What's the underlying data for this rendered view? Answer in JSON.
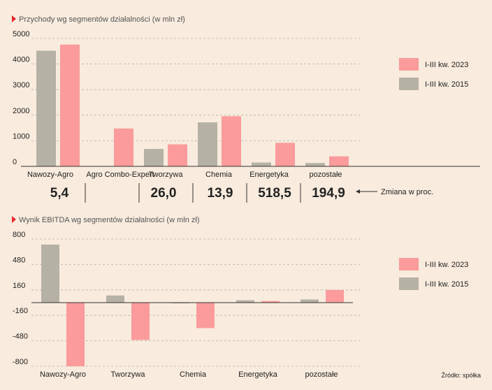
{
  "chart_data": [
    {
      "type": "bar",
      "title": "Przychody wg segmentów działalności (w mln zł)",
      "categories": [
        "Nawozy-Agro",
        "Agro Combo-Expert",
        "Tworzywa",
        "Chemia",
        "Energetyka",
        "pozostałe"
      ],
      "series": [
        {
          "name": "I-III kw. 2015",
          "color": "#b5b1a5",
          "values": [
            4520,
            null,
            680,
            1720,
            150,
            130
          ]
        },
        {
          "name": "I-III kw. 2023",
          "color": "#fb9b9b",
          "values": [
            4760,
            1480,
            860,
            1960,
            920,
            390
          ]
        }
      ],
      "yticks": [
        0,
        1000,
        2000,
        3000,
        4000,
        5000
      ],
      "ylim": [
        0,
        5000
      ],
      "grid": true,
      "legend": "right",
      "change_label": "Zmiana w proc.",
      "changes": [
        "5,4",
        "",
        "26,0",
        "13,9",
        "518,5",
        "194,9"
      ]
    },
    {
      "type": "bar",
      "title": "Wynik EBITDA wg segmentów działalności (w mln zł)",
      "categories": [
        "Nawozy-Agro",
        "Tworzywa",
        "Chemia",
        "Energetyka",
        "pozostałe"
      ],
      "series": [
        {
          "name": "I-III kw. 2015",
          "color": "#b5b1a5",
          "values": [
            730,
            90,
            0,
            30,
            40
          ]
        },
        {
          "name": "I-III kw. 2023",
          "color": "#fb9b9b",
          "values": [
            -800,
            -470,
            -320,
            20,
            160
          ]
        }
      ],
      "yticks": [
        "800",
        "480",
        "160",
        "-160",
        "-480",
        "-800"
      ],
      "ylim": [
        -800,
        800
      ],
      "grid": true,
      "legend": "right"
    }
  ],
  "source": "Źródło: spółka"
}
